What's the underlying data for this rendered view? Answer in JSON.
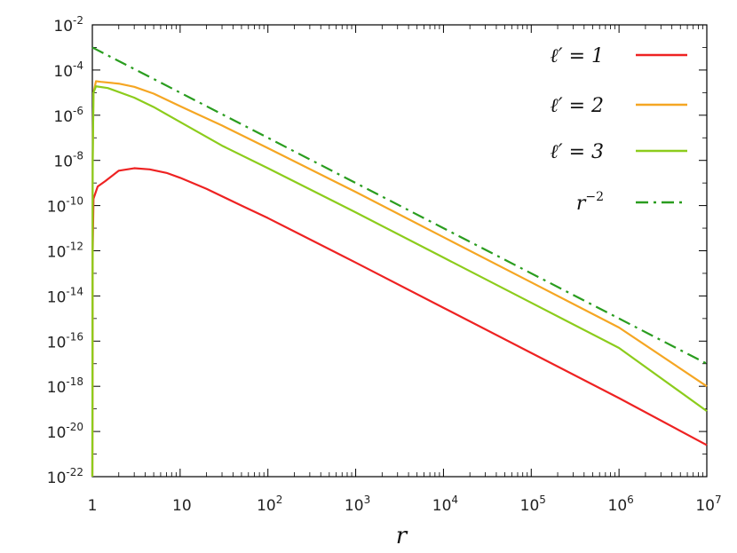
{
  "chart_data": {
    "type": "line",
    "xlabel": "r",
    "ylabel": "",
    "x_scale": "log",
    "y_scale": "log",
    "xlim": [
      1,
      10000000
    ],
    "ylim": [
      1e-22,
      0.01
    ],
    "grid": false,
    "legend_position": "top-right",
    "x_ticks": [
      {
        "base": "1",
        "exp": ""
      },
      {
        "base": "10",
        "exp": ""
      },
      {
        "base": "10",
        "exp": "2"
      },
      {
        "base": "10",
        "exp": "3"
      },
      {
        "base": "10",
        "exp": "4"
      },
      {
        "base": "10",
        "exp": "5"
      },
      {
        "base": "10",
        "exp": "6"
      },
      {
        "base": "10",
        "exp": "7"
      }
    ],
    "y_ticks": [
      {
        "base": "10",
        "exp": "-22"
      },
      {
        "base": "10",
        "exp": "-20"
      },
      {
        "base": "10",
        "exp": "-18"
      },
      {
        "base": "10",
        "exp": "-16"
      },
      {
        "base": "10",
        "exp": "-14"
      },
      {
        "base": "10",
        "exp": "-12"
      },
      {
        "base": "10",
        "exp": "-10"
      },
      {
        "base": "10",
        "exp": "-8"
      },
      {
        "base": "10",
        "exp": "-6"
      },
      {
        "base": "10",
        "exp": "-4"
      },
      {
        "base": "10",
        "exp": "-2"
      }
    ],
    "series": [
      {
        "name": "ℓ′ = 1",
        "legend": {
          "prefix": "ℓ′ = 1",
          "sup": ""
        },
        "color": "#ee2222",
        "dash": "solid",
        "points": [
          [
            1.0,
            1e-22
          ],
          [
            1.01,
            1e-12
          ],
          [
            1.03,
            2e-10
          ],
          [
            1.15,
            7e-10
          ],
          [
            1.4,
            1.2e-09
          ],
          [
            2.0,
            3.5e-09
          ],
          [
            3.0,
            4.5e-09
          ],
          [
            4.5,
            4e-09
          ],
          [
            7.0,
            2.8e-09
          ],
          [
            10,
            1.7e-09
          ],
          [
            20,
            5.5e-10
          ],
          [
            50,
            1e-10
          ],
          [
            100,
            2.8e-11
          ],
          [
            1000,
            3e-13
          ],
          [
            10000,
            3e-15
          ],
          [
            100000,
            3e-17
          ],
          [
            1000000,
            3e-19
          ],
          [
            10000000,
            2.5e-21
          ]
        ]
      },
      {
        "name": "ℓ′ = 2",
        "legend": {
          "prefix": "ℓ′ = 2",
          "sup": ""
        },
        "color": "#f5a623",
        "dash": "solid",
        "points": [
          [
            1.0,
            1e-22
          ],
          [
            1.01,
            1e-08
          ],
          [
            1.03,
            1e-05
          ],
          [
            1.1,
            3.2e-05
          ],
          [
            1.25,
            3e-05
          ],
          [
            2.0,
            2.5e-05
          ],
          [
            3.0,
            1.8e-05
          ],
          [
            5.0,
            9e-06
          ],
          [
            10,
            2.5e-06
          ],
          [
            30,
            3.5e-07
          ],
          [
            100,
            3.5e-08
          ],
          [
            1000,
            4e-10
          ],
          [
            10000,
            4e-12
          ],
          [
            100000,
            4e-14
          ],
          [
            1000000,
            4e-16
          ],
          [
            10000000,
            1e-18
          ]
        ]
      },
      {
        "name": "ℓ′ = 3",
        "legend": {
          "prefix": "ℓ′ = 3",
          "sup": ""
        },
        "color": "#8ccc1c",
        "dash": "solid",
        "points": [
          [
            1.0,
            1e-22
          ],
          [
            1.01,
            1e-08
          ],
          [
            1.03,
            1e-05
          ],
          [
            1.1,
            1.9e-05
          ],
          [
            1.5,
            1.6e-05
          ],
          [
            3.0,
            6e-06
          ],
          [
            5.0,
            2.3e-06
          ],
          [
            10,
            5e-07
          ],
          [
            30,
            4.5e-08
          ],
          [
            100,
            4.5e-09
          ],
          [
            1000,
            5e-11
          ],
          [
            10000,
            5e-13
          ],
          [
            100000,
            5e-15
          ],
          [
            1000000,
            5e-17
          ],
          [
            10000000,
            8e-20
          ]
        ]
      },
      {
        "name": "r^-2",
        "legend": {
          "prefix": "r",
          "sup": "−2"
        },
        "color": "#2a9d1f",
        "dash": "dashdot",
        "points": [
          [
            1,
            0.001
          ],
          [
            10000000,
            1e-17
          ]
        ]
      }
    ]
  }
}
